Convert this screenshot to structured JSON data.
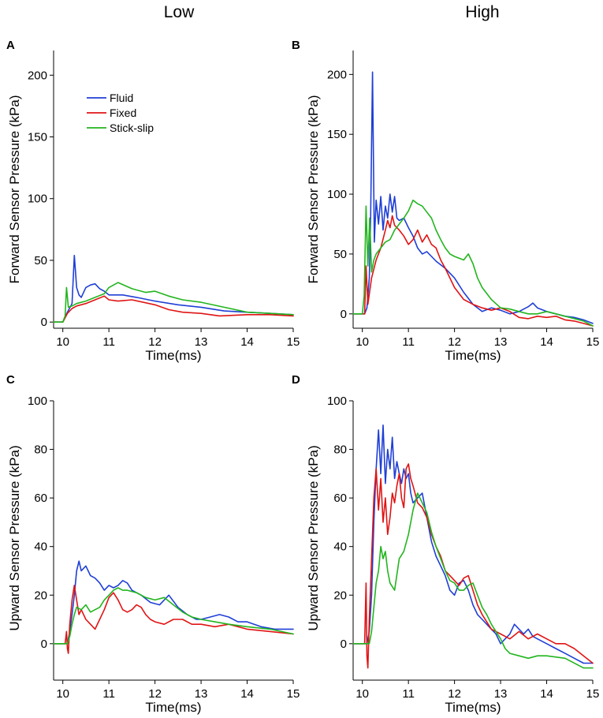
{
  "figure": {
    "col_titles": [
      "Low",
      "High"
    ]
  },
  "chart_data": [
    {
      "panel": "A",
      "type": "line",
      "xlabel": "Time(ms)",
      "ylabel": "Forward Sensor Pressure (kPa)",
      "xlim": [
        9.8,
        15
      ],
      "ylim": [
        -5,
        220
      ],
      "xticks": [
        10,
        11,
        12,
        13,
        14,
        15
      ],
      "yticks": [
        0,
        50,
        100,
        150,
        200
      ],
      "legend": [
        "Fluid",
        "Fixed",
        "Stick-slip"
      ],
      "legend_position": "top-left",
      "series": [
        {
          "name": "Fluid",
          "color": "#1f3fd6",
          "x": [
            9.8,
            10.0,
            10.1,
            10.2,
            10.25,
            10.3,
            10.35,
            10.4,
            10.5,
            10.6,
            10.7,
            10.8,
            10.9,
            11.0,
            11.3,
            11.6,
            12.0,
            12.5,
            13.0,
            13.5,
            14.0,
            14.5,
            15.0
          ],
          "y": [
            0,
            0,
            8,
            15,
            54,
            28,
            22,
            20,
            28,
            30,
            31,
            27,
            25,
            22,
            22,
            20,
            17,
            14,
            12,
            9,
            8,
            7,
            6
          ]
        },
        {
          "name": "Fixed",
          "color": "#e01414",
          "x": [
            9.8,
            10.0,
            10.1,
            10.2,
            10.3,
            10.5,
            10.7,
            10.9,
            11.0,
            11.2,
            11.5,
            12.0,
            12.3,
            12.6,
            13.0,
            13.4,
            14.0,
            14.5,
            15.0
          ],
          "y": [
            0,
            0,
            7,
            11,
            13,
            15,
            18,
            21,
            18,
            17,
            18,
            14,
            10,
            8,
            7,
            5,
            6,
            6,
            5
          ]
        },
        {
          "name": "Stick-slip",
          "color": "#22b51e",
          "x": [
            9.8,
            10.0,
            10.05,
            10.08,
            10.12,
            10.2,
            10.3,
            10.5,
            10.7,
            10.9,
            11.0,
            11.2,
            11.5,
            11.8,
            12.0,
            12.3,
            12.6,
            13.0,
            13.5,
            14.0,
            14.5,
            15.0
          ],
          "y": [
            0,
            0,
            5,
            28,
            12,
            13,
            15,
            17,
            20,
            23,
            28,
            32,
            27,
            24,
            25,
            21,
            18,
            16,
            12,
            8,
            7,
            6
          ]
        }
      ]
    },
    {
      "panel": "B",
      "type": "line",
      "xlabel": "Time(ms)",
      "ylabel": "Forward Sensor Pressure (kPa)",
      "xlim": [
        9.8,
        15
      ],
      "ylim": [
        -12,
        220
      ],
      "xticks": [
        10,
        11,
        12,
        13,
        14,
        15
      ],
      "yticks": [
        0,
        50,
        100,
        150,
        200
      ],
      "series": [
        {
          "name": "Fluid",
          "color": "#1f3fd6",
          "x": [
            9.8,
            10.05,
            10.1,
            10.15,
            10.18,
            10.22,
            10.26,
            10.3,
            10.35,
            10.4,
            10.45,
            10.5,
            10.55,
            10.6,
            10.65,
            10.7,
            10.75,
            10.8,
            10.9,
            11.0,
            11.1,
            11.2,
            11.3,
            11.4,
            11.5,
            11.6,
            11.8,
            12.0,
            12.2,
            12.4,
            12.6,
            12.8,
            13.0,
            13.2,
            13.4,
            13.6,
            13.7,
            13.8,
            14.0,
            14.2,
            14.4,
            14.6,
            14.8,
            15.0
          ],
          "y": [
            0,
            0,
            5,
            30,
            80,
            202,
            60,
            95,
            75,
            98,
            70,
            90,
            80,
            100,
            85,
            98,
            80,
            78,
            80,
            72,
            65,
            55,
            50,
            52,
            48,
            44,
            38,
            30,
            18,
            8,
            2,
            5,
            3,
            0,
            2,
            6,
            9,
            5,
            2,
            0,
            -2,
            -3,
            -5,
            -8
          ]
        },
        {
          "name": "Fixed",
          "color": "#e01414",
          "x": [
            9.8,
            10.05,
            10.08,
            10.12,
            10.2,
            10.3,
            10.4,
            10.5,
            10.55,
            10.6,
            10.65,
            10.7,
            10.8,
            10.9,
            11.0,
            11.1,
            11.2,
            11.3,
            11.4,
            11.5,
            11.6,
            11.7,
            11.8,
            12.0,
            12.2,
            12.4,
            12.6,
            12.8,
            13.0,
            13.2,
            13.4,
            13.6,
            13.8,
            14.0,
            14.2,
            14.4,
            14.6,
            14.8,
            15.0
          ],
          "y": [
            0,
            0,
            40,
            8,
            30,
            45,
            55,
            70,
            78,
            72,
            82,
            74,
            70,
            65,
            58,
            62,
            70,
            60,
            66,
            58,
            55,
            45,
            38,
            22,
            12,
            8,
            5,
            3,
            5,
            2,
            -3,
            -4,
            -2,
            -3,
            -2,
            -5,
            -6,
            -8,
            -10
          ]
        },
        {
          "name": "Stick-slip",
          "color": "#22b51e",
          "x": [
            9.8,
            10.0,
            10.04,
            10.08,
            10.12,
            10.16,
            10.2,
            10.25,
            10.3,
            10.4,
            10.5,
            10.6,
            10.7,
            10.8,
            10.9,
            11.0,
            11.1,
            11.2,
            11.3,
            11.4,
            11.5,
            11.6,
            11.7,
            11.8,
            11.9,
            12.0,
            12.2,
            12.3,
            12.4,
            12.5,
            12.6,
            12.8,
            13.0,
            13.2,
            13.4,
            13.6,
            13.8,
            14.0,
            14.4,
            14.8,
            15.0
          ],
          "y": [
            0,
            0,
            15,
            90,
            40,
            80,
            35,
            45,
            50,
            55,
            60,
            62,
            70,
            75,
            80,
            86,
            95,
            92,
            90,
            85,
            80,
            70,
            62,
            55,
            50,
            48,
            45,
            50,
            42,
            30,
            22,
            12,
            5,
            4,
            2,
            0,
            0,
            2,
            -2,
            -6,
            -10
          ]
        }
      ]
    },
    {
      "panel": "C",
      "type": "line",
      "xlabel": "Time(ms)",
      "ylabel": "Upward Sensor Pressure (kPa)",
      "xlim": [
        9.8,
        15
      ],
      "ylim": [
        -15,
        100
      ],
      "xticks": [
        10,
        11,
        12,
        13,
        14,
        15
      ],
      "yticks": [
        0,
        20,
        40,
        60,
        80,
        100
      ],
      "series": [
        {
          "name": "Fluid",
          "color": "#1f3fd6",
          "x": [
            9.8,
            10.1,
            10.15,
            10.2,
            10.25,
            10.3,
            10.35,
            10.4,
            10.5,
            10.6,
            10.7,
            10.8,
            10.9,
            11.0,
            11.1,
            11.2,
            11.3,
            11.4,
            11.5,
            11.7,
            11.9,
            12.1,
            12.3,
            12.5,
            12.7,
            12.9,
            13.0,
            13.2,
            13.4,
            13.6,
            13.8,
            14.0,
            14.3,
            14.6,
            15.0
          ],
          "y": [
            0,
            0,
            5,
            12,
            20,
            30,
            34,
            30,
            32,
            28,
            27,
            25,
            22,
            24,
            23,
            24,
            26,
            25,
            22,
            20,
            17,
            16,
            20,
            15,
            12,
            10,
            10,
            11,
            12,
            11,
            9,
            9,
            7,
            6,
            6
          ]
        },
        {
          "name": "Fixed",
          "color": "#e01414",
          "x": [
            9.8,
            10.05,
            10.08,
            10.1,
            10.12,
            10.15,
            10.2,
            10.25,
            10.3,
            10.35,
            10.4,
            10.5,
            10.6,
            10.7,
            10.8,
            10.9,
            11.0,
            11.1,
            11.2,
            11.3,
            11.4,
            11.5,
            11.6,
            11.7,
            11.8,
            11.9,
            12.0,
            12.2,
            12.4,
            12.6,
            12.8,
            13.0,
            13.3,
            13.6,
            14.0,
            14.5,
            15.0
          ],
          "y": [
            0,
            0,
            5,
            -2,
            -4,
            8,
            18,
            24,
            18,
            12,
            14,
            10,
            8,
            6,
            10,
            14,
            19,
            21,
            18,
            14,
            13,
            14,
            16,
            15,
            12,
            10,
            9,
            8,
            10,
            10,
            8,
            8,
            7,
            8,
            6,
            5,
            4
          ]
        },
        {
          "name": "Stick-slip",
          "color": "#22b51e",
          "x": [
            9.8,
            10.1,
            10.15,
            10.2,
            10.25,
            10.3,
            10.4,
            10.5,
            10.6,
            10.7,
            10.8,
            10.9,
            11.0,
            11.1,
            11.2,
            11.3,
            11.4,
            11.6,
            11.8,
            12.0,
            12.2,
            12.4,
            12.6,
            12.8,
            13.0,
            13.3,
            13.6,
            14.0,
            14.5,
            15.0
          ],
          "y": [
            0,
            0,
            3,
            8,
            12,
            15,
            14,
            16,
            13,
            14,
            15,
            18,
            20,
            22,
            23,
            22,
            22,
            21,
            19,
            18,
            19,
            16,
            13,
            11,
            10,
            9,
            8,
            7,
            6,
            4
          ]
        }
      ]
    },
    {
      "panel": "D",
      "type": "line",
      "xlabel": "Time(ms)",
      "ylabel": "Upward Sensor Pressure (kPa)",
      "xlim": [
        9.8,
        15
      ],
      "ylim": [
        -15,
        100
      ],
      "xticks": [
        10,
        11,
        12,
        13,
        14,
        15
      ],
      "yticks": [
        0,
        20,
        40,
        60,
        80,
        100
      ],
      "series": [
        {
          "name": "Fluid",
          "color": "#1f3fd6",
          "x": [
            9.8,
            10.1,
            10.15,
            10.2,
            10.25,
            10.3,
            10.35,
            10.4,
            10.45,
            10.5,
            10.55,
            10.6,
            10.65,
            10.7,
            10.75,
            10.8,
            10.85,
            10.9,
            10.95,
            11.0,
            11.05,
            11.1,
            11.2,
            11.3,
            11.4,
            11.5,
            11.6,
            11.7,
            11.8,
            11.9,
            12.0,
            12.1,
            12.2,
            12.3,
            12.4,
            12.5,
            12.6,
            12.7,
            12.8,
            12.9,
            13.0,
            13.1,
            13.2,
            13.3,
            13.4,
            13.5,
            13.6,
            13.7,
            13.8,
            14.0,
            14.2,
            14.4,
            14.6,
            14.8,
            15.0
          ],
          "y": [
            0,
            0,
            5,
            20,
            50,
            72,
            88,
            70,
            90,
            66,
            80,
            72,
            85,
            68,
            75,
            70,
            66,
            72,
            68,
            70,
            62,
            58,
            60,
            62,
            52,
            42,
            36,
            32,
            28,
            22,
            20,
            25,
            26,
            22,
            16,
            12,
            10,
            8,
            6,
            4,
            0,
            2,
            4,
            8,
            6,
            4,
            6,
            3,
            2,
            0,
            -2,
            -4,
            -6,
            -8,
            -8
          ]
        },
        {
          "name": "Fixed",
          "color": "#e01414",
          "x": [
            9.8,
            10.05,
            10.08,
            10.1,
            10.12,
            10.15,
            10.2,
            10.25,
            10.3,
            10.35,
            10.4,
            10.45,
            10.5,
            10.55,
            10.6,
            10.65,
            10.7,
            10.75,
            10.8,
            10.85,
            10.9,
            10.95,
            11.0,
            11.05,
            11.1,
            11.2,
            11.3,
            11.4,
            11.5,
            11.6,
            11.7,
            11.8,
            11.9,
            12.0,
            12.1,
            12.2,
            12.3,
            12.4,
            12.5,
            12.6,
            12.8,
            13.0,
            13.2,
            13.4,
            13.6,
            13.8,
            14.0,
            14.2,
            14.4,
            14.6,
            14.8,
            15.0
          ],
          "y": [
            0,
            0,
            25,
            -5,
            -10,
            10,
            35,
            60,
            72,
            55,
            68,
            50,
            60,
            45,
            52,
            62,
            58,
            65,
            70,
            60,
            56,
            72,
            74,
            68,
            65,
            58,
            56,
            52,
            45,
            40,
            36,
            30,
            28,
            26,
            24,
            27,
            28,
            22,
            16,
            12,
            6,
            4,
            2,
            5,
            2,
            4,
            2,
            0,
            0,
            -2,
            -5,
            -8
          ]
        },
        {
          "name": "Stick-slip",
          "color": "#22b51e",
          "x": [
            9.8,
            10.15,
            10.2,
            10.25,
            10.3,
            10.35,
            10.4,
            10.45,
            10.5,
            10.55,
            10.6,
            10.7,
            10.8,
            10.9,
            11.0,
            11.1,
            11.2,
            11.3,
            11.4,
            11.5,
            11.6,
            11.7,
            11.8,
            11.9,
            12.0,
            12.1,
            12.2,
            12.3,
            12.4,
            12.5,
            12.6,
            12.7,
            12.8,
            12.9,
            13.0,
            13.1,
            13.2,
            13.4,
            13.6,
            13.8,
            14.0,
            14.4,
            14.8,
            15.0
          ],
          "y": [
            0,
            0,
            5,
            15,
            25,
            30,
            40,
            35,
            38,
            30,
            25,
            22,
            35,
            38,
            45,
            55,
            62,
            58,
            54,
            46,
            40,
            35,
            30,
            26,
            25,
            22,
            22,
            24,
            25,
            20,
            15,
            12,
            8,
            5,
            2,
            -2,
            -4,
            -5,
            -6,
            -5,
            -5,
            -6,
            -10,
            -10
          ]
        }
      ]
    }
  ]
}
